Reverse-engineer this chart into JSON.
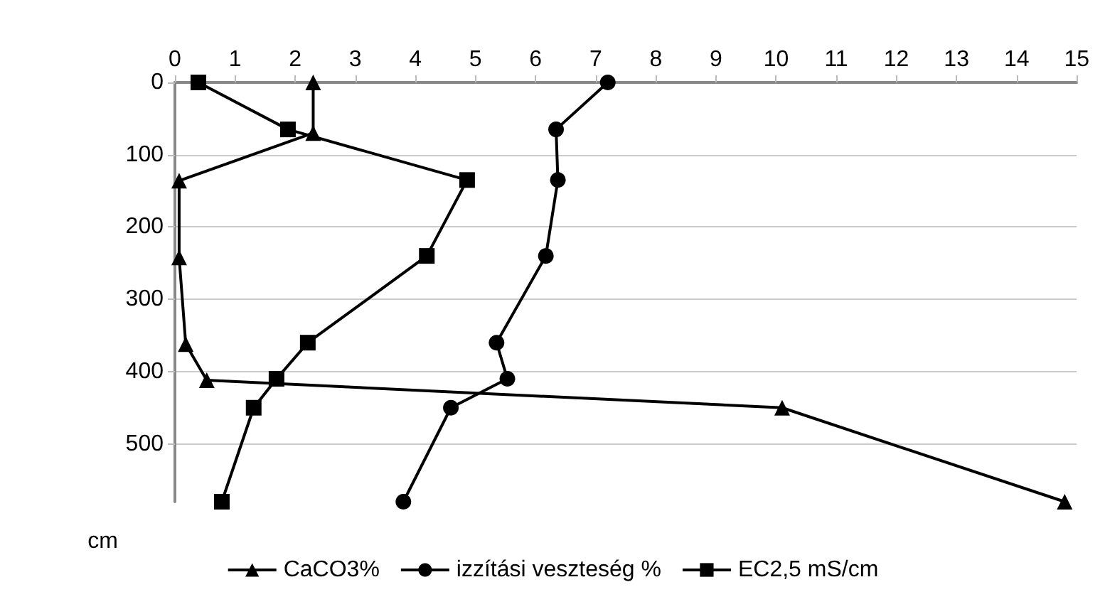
{
  "chart_data": {
    "type": "line",
    "ylabel": "cm",
    "xlim": [
      0,
      15
    ],
    "xticks": [
      0,
      1,
      2,
      3,
      4,
      5,
      6,
      7,
      8,
      9,
      10,
      11,
      12,
      13,
      14,
      15
    ],
    "ylim": [
      580,
      0
    ],
    "yticks": [
      0,
      100,
      200,
      300,
      400,
      500
    ],
    "grid": "y",
    "legend": "bottom",
    "line_style": "solid",
    "series": [
      {
        "name": "CaCO3%",
        "color": "#000000",
        "marker": "triangle",
        "x": [
          2.3,
          2.3,
          0.07,
          0.07,
          0.18,
          0.53,
          10.1,
          14.8
        ],
        "values": [
          0,
          70,
          136,
          242,
          362,
          412,
          450,
          580
        ]
      },
      {
        "name": "izzítási veszteség %",
        "color": "#000000",
        "marker": "circle",
        "x": [
          7.2,
          6.34,
          6.37,
          6.17,
          5.35,
          5.53,
          4.59,
          3.8
        ],
        "values": [
          0,
          65,
          135,
          240,
          360,
          410,
          450,
          580
        ]
      },
      {
        "name": "EC2,5 mS/cm",
        "color": "#000000",
        "marker": "square",
        "x": [
          0.39,
          1.88,
          4.86,
          4.19,
          2.21,
          1.69,
          1.31,
          0.78
        ],
        "values": [
          0,
          65,
          135,
          240,
          360,
          410,
          450,
          580
        ]
      }
    ]
  }
}
